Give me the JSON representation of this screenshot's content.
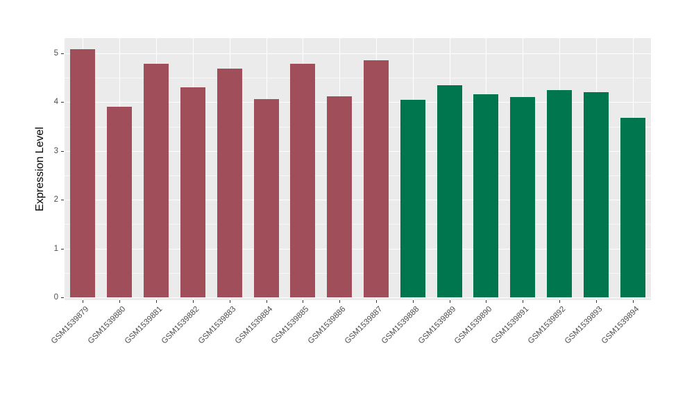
{
  "chart_data": {
    "type": "bar",
    "title": "",
    "xlabel": "",
    "ylabel": "Expression Level",
    "ylim": [
      0,
      5.31
    ],
    "yticks": [
      0,
      1,
      2,
      3,
      4,
      5
    ],
    "yticks_minor": [
      0.5,
      1.5,
      2.5,
      3.5,
      4.5
    ],
    "grid": "white major and minor horizontal gridlines plus white vertical gridlines at category centers on a light gray panel",
    "legend": "none",
    "categories": [
      "GSM1539879",
      "GSM1539880",
      "GSM1539881",
      "GSM1539882",
      "GSM1539883",
      "GSM1539884",
      "GSM1539885",
      "GSM1539886",
      "GSM1539887",
      "GSM1539888",
      "GSM1539889",
      "GSM1539890",
      "GSM1539891",
      "GSM1539892",
      "GSM1539893",
      "GSM1539894"
    ],
    "values": [
      5.08,
      3.9,
      4.78,
      4.3,
      4.68,
      4.06,
      4.79,
      4.12,
      4.85,
      4.05,
      4.34,
      4.16,
      4.1,
      4.24,
      4.2,
      3.68
    ],
    "groups": [
      {
        "name": "group-1",
        "color": "#A04E5A",
        "start_index": 0,
        "end_index": 8
      },
      {
        "name": "group-2",
        "color": "#00764E",
        "start_index": 9,
        "end_index": 15
      }
    ],
    "colors": {
      "panel_background": "#EBEBEB",
      "grid_major": "#FFFFFF",
      "tick_text": "#4D4D4D",
      "axis_title": "#000000",
      "tick_mark": "#333333"
    }
  }
}
